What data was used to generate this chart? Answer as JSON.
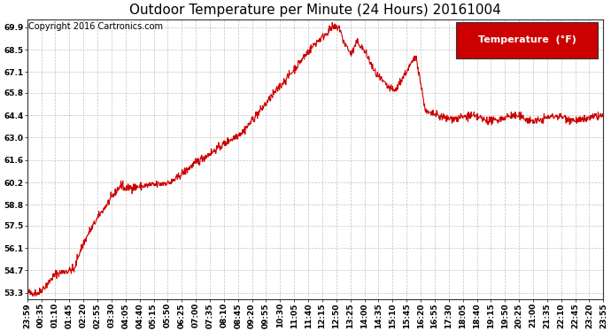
{
  "title": "Outdoor Temperature per Minute (24 Hours) 20161004",
  "copyright_text": "Copyright 2016 Cartronics.com",
  "legend_label": "Temperature  (°F)",
  "background_color": "#ffffff",
  "plot_bg_color": "#ffffff",
  "line_color": "#cc0000",
  "line_width": 0.8,
  "y_ticks": [
    53.3,
    54.7,
    56.1,
    57.5,
    58.8,
    60.2,
    61.6,
    63.0,
    64.4,
    65.8,
    67.1,
    68.5,
    69.9
  ],
  "ylim": [
    52.9,
    70.4
  ],
  "grid_color": "#bbbbbb",
  "grid_style": "--",
  "x_tick_labels": [
    "23:59",
    "00:35",
    "01:10",
    "01:45",
    "02:20",
    "02:55",
    "03:30",
    "04:05",
    "04:40",
    "05:15",
    "05:50",
    "06:25",
    "07:00",
    "07:35",
    "08:10",
    "08:45",
    "09:20",
    "09:55",
    "10:30",
    "11:05",
    "11:40",
    "12:15",
    "12:50",
    "13:25",
    "14:00",
    "14:35",
    "15:10",
    "15:45",
    "16:20",
    "16:55",
    "17:30",
    "18:05",
    "18:40",
    "19:15",
    "19:50",
    "20:25",
    "21:00",
    "21:35",
    "22:10",
    "22:45",
    "23:20",
    "23:55"
  ],
  "title_fontsize": 11,
  "copyright_fontsize": 7,
  "tick_fontsize": 6.5,
  "legend_fontsize": 8,
  "legend_color": "#cc0000"
}
